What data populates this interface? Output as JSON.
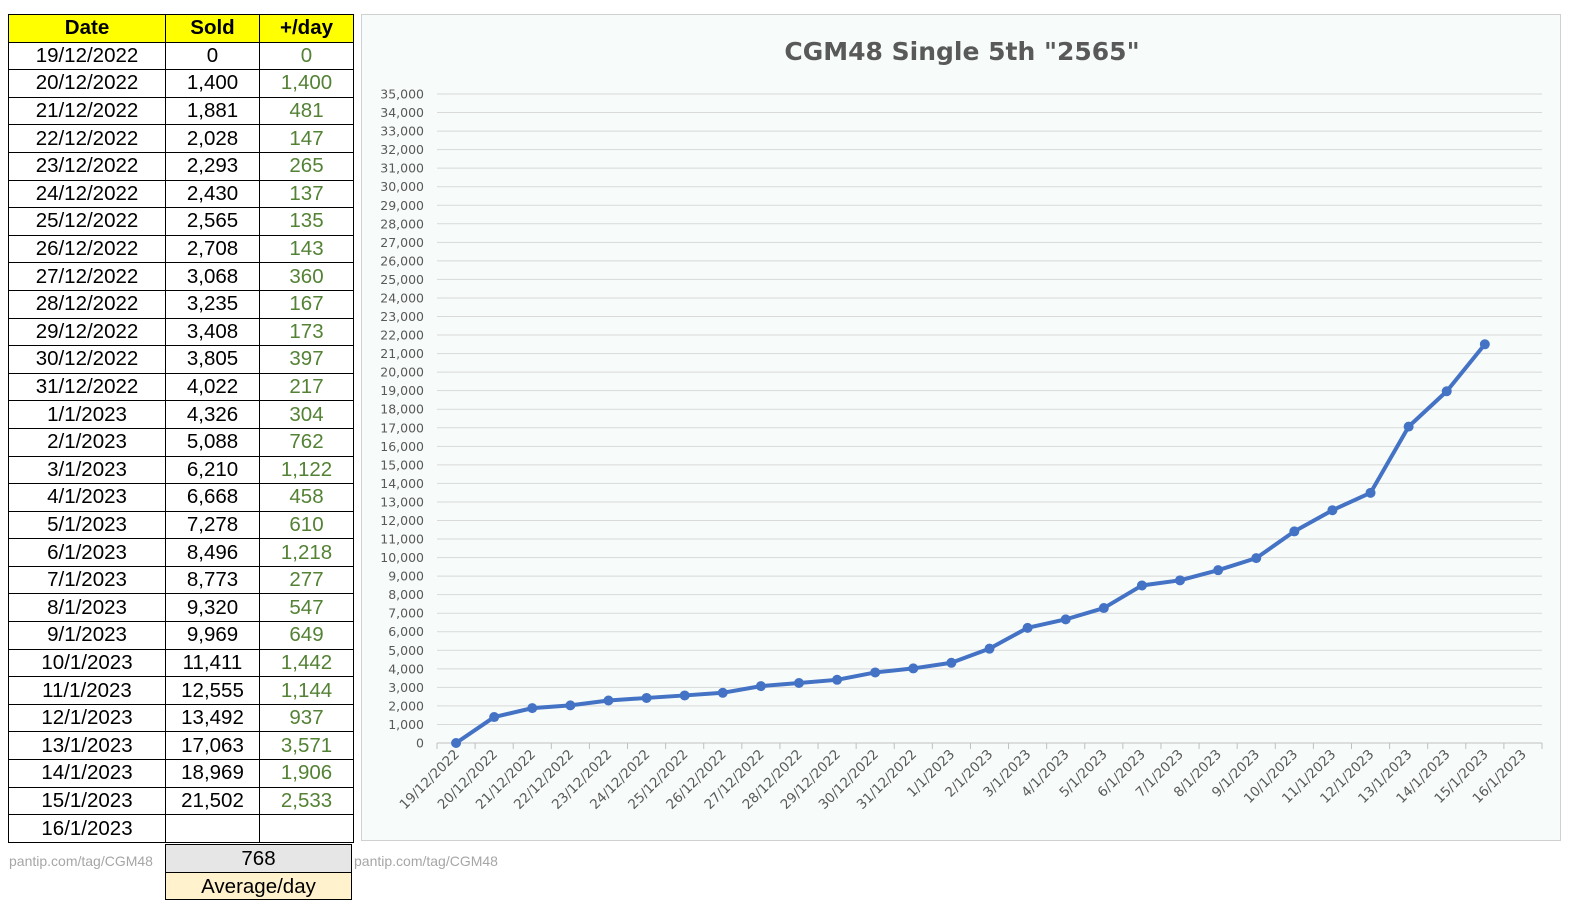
{
  "table": {
    "headers": {
      "date": "Date",
      "sold": "Sold",
      "per_day": "+/day"
    },
    "rows": [
      {
        "date": "19/12/2022",
        "sold": "0",
        "per_day": "0"
      },
      {
        "date": "20/12/2022",
        "sold": "1,400",
        "per_day": "1,400"
      },
      {
        "date": "21/12/2022",
        "sold": "1,881",
        "per_day": "481"
      },
      {
        "date": "22/12/2022",
        "sold": "2,028",
        "per_day": "147"
      },
      {
        "date": "23/12/2022",
        "sold": "2,293",
        "per_day": "265"
      },
      {
        "date": "24/12/2022",
        "sold": "2,430",
        "per_day": "137"
      },
      {
        "date": "25/12/2022",
        "sold": "2,565",
        "per_day": "135"
      },
      {
        "date": "26/12/2022",
        "sold": "2,708",
        "per_day": "143"
      },
      {
        "date": "27/12/2022",
        "sold": "3,068",
        "per_day": "360"
      },
      {
        "date": "28/12/2022",
        "sold": "3,235",
        "per_day": "167"
      },
      {
        "date": "29/12/2022",
        "sold": "3,408",
        "per_day": "173"
      },
      {
        "date": "30/12/2022",
        "sold": "3,805",
        "per_day": "397"
      },
      {
        "date": "31/12/2022",
        "sold": "4,022",
        "per_day": "217"
      },
      {
        "date": "1/1/2023",
        "sold": "4,326",
        "per_day": "304"
      },
      {
        "date": "2/1/2023",
        "sold": "5,088",
        "per_day": "762"
      },
      {
        "date": "3/1/2023",
        "sold": "6,210",
        "per_day": "1,122"
      },
      {
        "date": "4/1/2023",
        "sold": "6,668",
        "per_day": "458"
      },
      {
        "date": "5/1/2023",
        "sold": "7,278",
        "per_day": "610"
      },
      {
        "date": "6/1/2023",
        "sold": "8,496",
        "per_day": "1,218"
      },
      {
        "date": "7/1/2023",
        "sold": "8,773",
        "per_day": "277"
      },
      {
        "date": "8/1/2023",
        "sold": "9,320",
        "per_day": "547"
      },
      {
        "date": "9/1/2023",
        "sold": "9,969",
        "per_day": "649"
      },
      {
        "date": "10/1/2023",
        "sold": "11,411",
        "per_day": "1,442"
      },
      {
        "date": "11/1/2023",
        "sold": "12,555",
        "per_day": "1,144"
      },
      {
        "date": "12/1/2023",
        "sold": "13,492",
        "per_day": "937"
      },
      {
        "date": "13/1/2023",
        "sold": "17,063",
        "per_day": "3,571"
      },
      {
        "date": "14/1/2023",
        "sold": "18,969",
        "per_day": "1,906"
      },
      {
        "date": "15/1/2023",
        "sold": "21,502",
        "per_day": "2,533"
      },
      {
        "date": "16/1/2023",
        "sold": "",
        "per_day": ""
      }
    ]
  },
  "summary": {
    "average_value": "768",
    "average_label": "Average/day"
  },
  "watermark": "pantip.com/tag/CGM48",
  "colors": {
    "header_bg": "#ffff00",
    "per_day_text": "#548235",
    "line": "#4472c4",
    "chart_bg": "#f7fcfa",
    "avg_label_bg": "#fff2cc",
    "avg_value_bg": "#e6e6e6"
  },
  "chart_data": {
    "type": "line",
    "title": "CGM48 Single 5th \"2565\"",
    "xlabel": "",
    "ylabel": "",
    "categories": [
      "19/12/2022",
      "20/12/2022",
      "21/12/2022",
      "22/12/2022",
      "23/12/2022",
      "24/12/2022",
      "25/12/2022",
      "26/12/2022",
      "27/12/2022",
      "28/12/2022",
      "29/12/2022",
      "30/12/2022",
      "31/12/2022",
      "1/1/2023",
      "2/1/2023",
      "3/1/2023",
      "4/1/2023",
      "5/1/2023",
      "6/1/2023",
      "7/1/2023",
      "8/1/2023",
      "9/1/2023",
      "10/1/2023",
      "11/1/2023",
      "12/1/2023",
      "13/1/2023",
      "14/1/2023",
      "15/1/2023",
      "16/1/2023"
    ],
    "series": [
      {
        "values": [
          0,
          1400,
          1881,
          2028,
          2293,
          2430,
          2565,
          2708,
          3068,
          3235,
          3408,
          3805,
          4022,
          4326,
          5088,
          6210,
          6668,
          7278,
          8496,
          8773,
          9320,
          9969,
          11411,
          12555,
          13492,
          17063,
          18969,
          21502,
          null
        ]
      }
    ],
    "ylim": [
      0,
      35000
    ],
    "ytick_step": 1000,
    "grid": true,
    "legend": "none"
  }
}
